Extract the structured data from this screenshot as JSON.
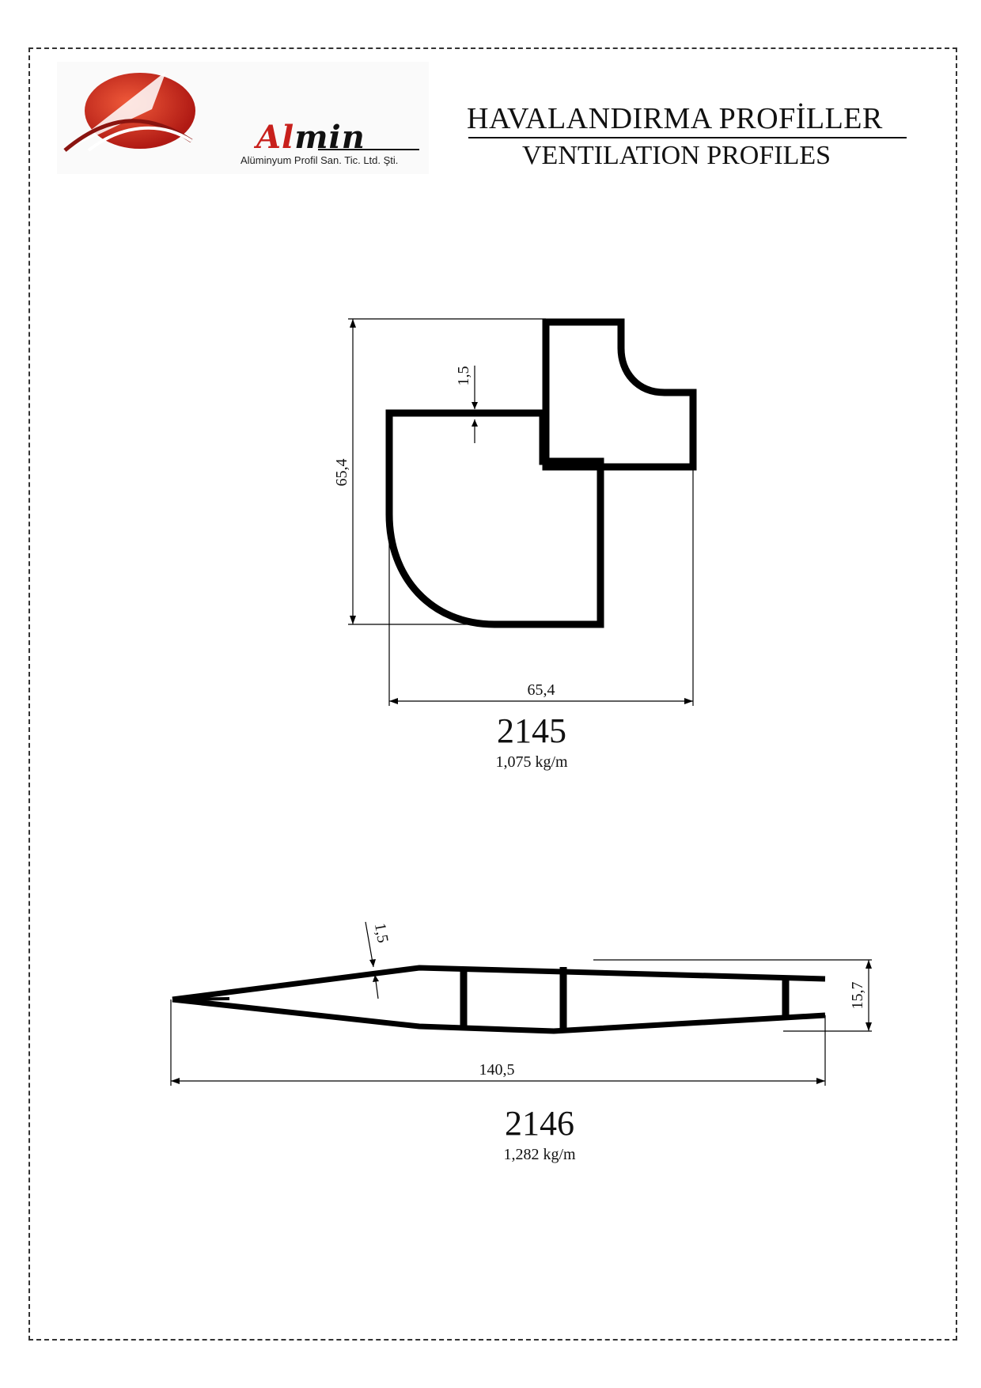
{
  "header": {
    "brand_initial": "Al",
    "brand_rest": "min",
    "tagline": "Alüminyum Profil San. Tic. Ltd. Şti.",
    "title_tr": "HAVALANDIRMA  PROFİLLER",
    "title_en": "VENTILATION PROFILES"
  },
  "colors": {
    "brand_red": "#c8201c",
    "ink": "#111111"
  },
  "profiles": [
    {
      "code": "2145",
      "weight": "1,075 kg/m",
      "dims": {
        "height": "65,4",
        "width": "65,4",
        "wall": "1,5"
      }
    },
    {
      "code": "2146",
      "weight": "1,282 kg/m",
      "dims": {
        "length": "140,5",
        "height": "15,7",
        "wall": "1,5"
      }
    }
  ]
}
